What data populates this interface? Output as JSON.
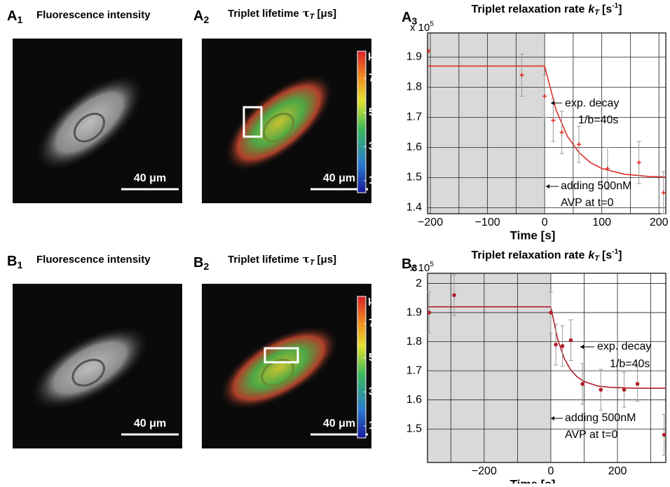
{
  "panels": [
    {
      "label": "A",
      "label_sub": "1",
      "title": "Fluorescence intensity",
      "scale": "40 μm",
      "kind": "intensity"
    },
    {
      "label": "A",
      "label_sub": "2",
      "title": "Triplet lifetime",
      "title_symbol": "τ",
      "title_symbol_sub": "T",
      "title_unit": "[μs]",
      "scale": "40 μm",
      "kind": "lifetime",
      "colorbar": {
        "unit": "μs",
        "lim": [
          0.3,
          8.6
        ],
        "ticks": [
          1,
          3,
          5,
          7
        ]
      }
    },
    {
      "label": "B",
      "label_sub": "1",
      "title": "Fluorescence intensity",
      "scale": "40 μm",
      "kind": "intensity"
    },
    {
      "label": "B",
      "label_sub": "2",
      "title": "Triplet lifetime",
      "title_symbol": "τ",
      "title_symbol_sub": "T",
      "title_unit": "[μs]",
      "scale": "40 μm",
      "kind": "lifetime",
      "colorbar": {
        "unit": "μs",
        "lim": [
          0.3,
          8.6
        ],
        "ticks": [
          1,
          3,
          5,
          7
        ]
      }
    }
  ],
  "chart_data": [
    {
      "type": "scatter",
      "panel_label": "A",
      "panel_label_sub": "3",
      "title": "Triplet relaxation rate",
      "title_symbol": "k",
      "title_symbol_sub": "T",
      "title_unit": "[s",
      "title_unit_sup": "-1",
      "title_unit_end": "]",
      "multiplier": "x 10",
      "multiplier_exp": "5",
      "xlabel": "Time [s]",
      "xlim": [
        -205,
        212
      ],
      "ylim": [
        1.38,
        1.98
      ],
      "xticks": [
        {
          "value": -200,
          "label": "−200"
        },
        {
          "value": -100,
          "label": "−100"
        },
        0,
        100,
        200
      ],
      "xminorticks": [
        -150,
        -50,
        50,
        150
      ],
      "yticks": [
        1.4,
        1.5,
        1.6,
        1.7,
        1.8,
        1.9
      ],
      "grid": true,
      "shaded_until": 0,
      "x": [
        -203,
        -40,
        0,
        15,
        30,
        60,
        110,
        165,
        208
      ],
      "values": [
        1.92,
        1.84,
        1.77,
        1.69,
        1.65,
        1.61,
        1.53,
        1.55,
        1.45
      ],
      "errors": [
        null,
        0.07,
        0.07,
        0.07,
        0.07,
        0.06,
        0.07,
        0.07,
        0.07
      ],
      "color": "#e0302a",
      "marker": "plus",
      "error_color": "#9a9a9a",
      "fit_x": [
        -205,
        0,
        20,
        40,
        60,
        80,
        100,
        140,
        180,
        212
      ],
      "fit_values": [
        1.87,
        1.87,
        1.724,
        1.636,
        1.583,
        1.55,
        1.53,
        1.511,
        1.504,
        1.502
      ],
      "fit_color": "#e0302a",
      "annotations": [
        "exp. decay",
        "1/b=40s",
        "adding 500nM",
        "AVP at t=0"
      ]
    },
    {
      "type": "scatter",
      "panel_label": "B",
      "panel_label_sub": "3",
      "title": "Triplet relaxation rate",
      "title_symbol": "k",
      "title_symbol_sub": "T",
      "title_unit": "[s",
      "title_unit_sup": "-1",
      "title_unit_end": "]",
      "multiplier": "x 10",
      "multiplier_exp": "5",
      "xlabel": "Time [s]",
      "xlim": [
        -370,
        345
      ],
      "ylim": [
        1.385,
        2.035
      ],
      "xticks": [
        {
          "value": -200,
          "label": "−200"
        },
        0,
        200
      ],
      "xminorticks": [
        -300,
        -100,
        100,
        300
      ],
      "yticks": [
        1.5,
        1.6,
        1.7,
        1.8,
        1.9,
        2
      ],
      "grid": true,
      "shaded_until": 0,
      "x": [
        -365,
        -290,
        0,
        15,
        35,
        60,
        95,
        150,
        220,
        260,
        340
      ],
      "values": [
        1.9,
        1.96,
        1.9,
        1.79,
        1.785,
        1.805,
        1.655,
        1.635,
        1.635,
        1.655,
        1.48
      ],
      "errors": [
        0.07,
        0.07,
        0.07,
        0.07,
        0.07,
        0.07,
        0.07,
        0.07,
        0.06,
        0.06,
        0.07
      ],
      "color": "#b0202a",
      "marker": "dot",
      "error_color": "#9a9a9a",
      "fit_x": [
        -370,
        0,
        20,
        40,
        60,
        80,
        100,
        140,
        180,
        260,
        345
      ],
      "fit_values": [
        1.92,
        1.92,
        1.81,
        1.743,
        1.702,
        1.678,
        1.663,
        1.648,
        1.643,
        1.64,
        1.64
      ],
      "fit_color": "#b0202a",
      "annotations": [
        "exp. decay",
        "1/b=40s",
        "adding 500nM",
        "AVP at t=0"
      ]
    }
  ]
}
